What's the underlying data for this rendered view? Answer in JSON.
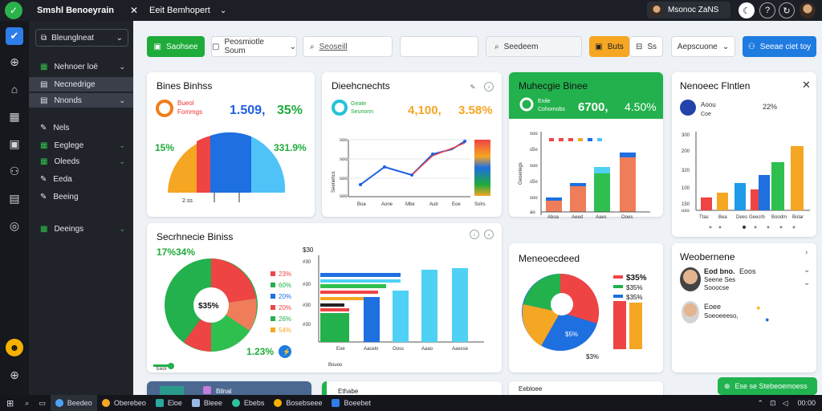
{
  "topbar": {
    "app_title": "Smshl Benoeyrain",
    "close_glyph": "✕",
    "tab_label": "Eeit  Bemhopert",
    "chevron": "⌄",
    "user_name": "Msonoc ZaNS",
    "icons": [
      "moon-icon",
      "help-icon",
      "refresh-icon"
    ]
  },
  "sidebar": {
    "selector_label": "Bleunglneat",
    "items": [
      {
        "label": "Nehnoer loë",
        "active": false,
        "chevron": true
      },
      {
        "label": "Necnedrige",
        "active": true,
        "chevron": false
      },
      {
        "label": "Nnonds",
        "active": true,
        "chevron": true
      },
      {
        "label": "Nels",
        "active": false,
        "chevron": false
      },
      {
        "label": "Eeglege",
        "active": false,
        "chevron": true
      },
      {
        "label": "Oleeds",
        "active": false,
        "chevron": true
      },
      {
        "label": "Eeda",
        "active": false,
        "chevron": false
      },
      {
        "label": "Beeing",
        "active": false,
        "chevron": false
      },
      {
        "label": "Deeings",
        "active": false,
        "chevron": true
      }
    ]
  },
  "toolbar": {
    "primary_label": "Saohsee",
    "filter_label": "Peosmiotle Soum",
    "search_placeholder": "Seoseill",
    "search2_label": "Seedeem",
    "orange_label": "Buts",
    "page_label": "Ss",
    "dropdown_label": "Aepscuone",
    "action_label": "Seeae ciet toy"
  },
  "cards": {
    "kpi1": {
      "title": "Bines Binhss",
      "legend_a": "Bueol",
      "legend_b": "Fommgs",
      "value_a": "1.509,",
      "value_b": "35%",
      "left_pct": "15%",
      "right_pct": "331.9%",
      "axis_label": "2.ss"
    },
    "kpi2": {
      "title": "Dieehcnechts",
      "legend_a": "Geate",
      "legend_b": "Seunonn",
      "value_a": "4,100,",
      "value_b": "3.58%",
      "y_ticks": [
        "soo",
        "soo",
        "soo",
        "soo"
      ],
      "y_title": "Seenehcs",
      "x_ticks": [
        "Boa",
        "Aone",
        "Mbe",
        "Aub",
        "Eoe",
        "Solrs"
      ]
    },
    "kpi3": {
      "title": "Muhecgie Binee",
      "legend_a": "Enile",
      "legend_b": "Cohomobs",
      "value_a": "6700,",
      "value_b": "4.50%",
      "y_ticks": [
        "soo",
        "s5o",
        "soo",
        "s5o",
        "soo",
        "ao"
      ],
      "y_title": "Geoerlegs",
      "x_ticks": [
        "Aboa",
        "Aeed",
        "Aaes",
        "Ooes"
      ]
    },
    "kpi4": {
      "title": "Nenoeec Flntlen",
      "stat_name": "Aoou",
      "stat_value": "22%",
      "stat_sub": "Coe",
      "y_ticks": [
        "300",
        "200",
        "320",
        "100",
        "150",
        "uso"
      ],
      "x_ticks": [
        "Ttas",
        "Bea",
        "Dees",
        "Geecrb",
        "Boodm",
        "Bolar"
      ]
    },
    "donut": {
      "title": "Secrhnecie Biniss",
      "left_pct": "17%",
      "right_pct": "34%",
      "center": "$35%",
      "legend": [
        "23%",
        "60%",
        "20%",
        "20%",
        "26%",
        "54%"
      ],
      "bottom_pct": "1.23%",
      "footer": "Eeor"
    },
    "hbars": {
      "y_value": "$30",
      "y_ticks": [
        "#30",
        "#30",
        "#30",
        "#30"
      ],
      "x_ticks": [
        "Eoe",
        "Aacelo",
        "Ooss",
        "Aaao",
        "Aaesse"
      ],
      "footer": "Bouoo"
    },
    "pie": {
      "title": "Meneoecdeed",
      "legend": [
        "$35%",
        "$35%",
        "$35%"
      ],
      "label_in": "$5%",
      "label_out": "$3%"
    },
    "people": {
      "title": "Weobernene",
      "p1_name": "Eod bno.",
      "p1_value": "Eoos",
      "p1_sub1": "Seene Ses",
      "p1_sub2": "Sooocse",
      "p2_name": "Eoee",
      "p2_sub": "Soeoeeeso,"
    }
  },
  "bottom": {
    "card_label": "Bilnal",
    "bar_label": "Ethabe",
    "strip_label": "Eebloee"
  },
  "toast": {
    "label": "Ese se Stebeoemoess"
  },
  "taskbar": {
    "apps": [
      "Beedeo",
      "Oberebeo",
      "Eloe",
      "Bleee",
      "Ebebs",
      "Bosebseee",
      "Boeebet"
    ],
    "clock": "00:00"
  },
  "colors": {
    "green": "#2fc24d",
    "blue": "#1e7be0",
    "orange": "#f5a623",
    "red": "#ef4444",
    "cyan": "#4fd1f5",
    "darkbg": "#20232a"
  }
}
